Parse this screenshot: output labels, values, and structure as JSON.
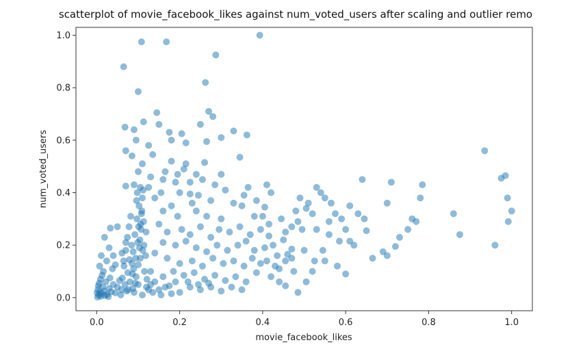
{
  "chart_data": {
    "type": "scatter",
    "title": "scatterplot of movie_facebook_likes against num_voted_users after scaling and outlier remo",
    "xlabel": "movie_facebook_likes",
    "ylabel": "num_voted_users",
    "xlim": [
      -0.05,
      1.05
    ],
    "ylim": [
      -0.05,
      1.03
    ],
    "xticks": [
      "0.0",
      "0.2",
      "0.4",
      "0.6",
      "0.8",
      "1.0"
    ],
    "yticks": [
      "0.0",
      "0.2",
      "0.4",
      "0.6",
      "0.8",
      "1.0"
    ],
    "grid": false,
    "legend": "none",
    "marker_color": "#1f77b4",
    "marker_alpha": 0.5,
    "points": [
      [
        0.002,
        0.002
      ],
      [
        0.005,
        0.01
      ],
      [
        0.008,
        0.02
      ],
      [
        0.01,
        0.005
      ],
      [
        0.003,
        0.03
      ],
      [
        0.012,
        0.015
      ],
      [
        0.015,
        0.04
      ],
      [
        0.02,
        0.008
      ],
      [
        0.006,
        0.055
      ],
      [
        0.018,
        0.025
      ],
      [
        0.025,
        0.012
      ],
      [
        0.03,
        0.035
      ],
      [
        0.001,
        0.018
      ],
      [
        0.009,
        0.07
      ],
      [
        0.022,
        0.06
      ],
      [
        0.028,
        0.004
      ],
      [
        0.035,
        0.022
      ],
      [
        0.04,
        0.05
      ],
      [
        0.013,
        0.085
      ],
      [
        0.004,
        0.045
      ],
      [
        0.016,
        0.1
      ],
      [
        0.032,
        0.075
      ],
      [
        0.045,
        0.018
      ],
      [
        0.05,
        0.04
      ],
      [
        0.007,
        0.12
      ],
      [
        0.024,
        0.14
      ],
      [
        0.038,
        0.11
      ],
      [
        0.055,
        0.065
      ],
      [
        0.06,
        0.03
      ],
      [
        0.011,
        0.16
      ],
      [
        0.019,
        0.23
      ],
      [
        0.033,
        0.265
      ],
      [
        0.04,
        0.16
      ],
      [
        0.05,
        0.27
      ],
      [
        0.061,
        0.17
      ],
      [
        0.065,
        0.14
      ],
      [
        0.07,
        0.21
      ],
      [
        0.075,
        0.095
      ],
      [
        0.03,
        0.19
      ],
      [
        0.045,
        0.125
      ],
      [
        0.08,
        0.06
      ],
      [
        0.085,
        0.13
      ],
      [
        0.09,
        0.02
      ],
      [
        0.095,
        0.08
      ],
      [
        0.1,
        0.05
      ],
      [
        0.105,
        0.15
      ],
      [
        0.11,
        0.01
      ],
      [
        0.115,
        0.1
      ],
      [
        0.068,
        0.05
      ],
      [
        0.072,
        0.025
      ],
      [
        0.088,
        0.175
      ],
      [
        0.092,
        0.24
      ],
      [
        0.097,
        0.3
      ],
      [
        0.102,
        0.35
      ],
      [
        0.104,
        0.22
      ],
      [
        0.106,
        0.28
      ],
      [
        0.108,
        0.32
      ],
      [
        0.11,
        0.38
      ],
      [
        0.112,
        0.41
      ],
      [
        0.107,
        0.26
      ],
      [
        0.103,
        0.19
      ],
      [
        0.099,
        0.21
      ],
      [
        0.094,
        0.15
      ],
      [
        0.089,
        0.11
      ],
      [
        0.086,
        0.09
      ],
      [
        0.114,
        0.2
      ],
      [
        0.118,
        0.16
      ],
      [
        0.121,
        0.07
      ],
      [
        0.125,
        0.03
      ],
      [
        0.098,
        0.4
      ],
      [
        0.109,
        0.33
      ],
      [
        0.113,
        0.29
      ],
      [
        0.101,
        0.27
      ],
      [
        0.096,
        0.37
      ],
      [
        0.111,
        0.18
      ],
      [
        0.105,
        0.42
      ],
      [
        0.1,
        0.125
      ],
      [
        0.093,
        0.055
      ],
      [
        0.087,
        0.035
      ],
      [
        0.119,
        0.25
      ],
      [
        0.065,
        0.88
      ],
      [
        0.108,
        0.975
      ],
      [
        0.168,
        0.975
      ],
      [
        0.287,
        0.925
      ],
      [
        0.393,
        1.0
      ],
      [
        0.262,
        0.82
      ],
      [
        0.1,
        0.785
      ],
      [
        0.145,
        0.705
      ],
      [
        0.27,
        0.71
      ],
      [
        0.28,
        0.69
      ],
      [
        0.068,
        0.65
      ],
      [
        0.09,
        0.64
      ],
      [
        0.113,
        0.67
      ],
      [
        0.15,
        0.66
      ],
      [
        0.175,
        0.63
      ],
      [
        0.205,
        0.625
      ],
      [
        0.25,
        0.66
      ],
      [
        0.33,
        0.635
      ],
      [
        0.362,
        0.62
      ],
      [
        0.095,
        0.6
      ],
      [
        0.125,
        0.58
      ],
      [
        0.18,
        0.6
      ],
      [
        0.215,
        0.59
      ],
      [
        0.265,
        0.595
      ],
      [
        0.3,
        0.61
      ],
      [
        0.07,
        0.56
      ],
      [
        0.085,
        0.54
      ],
      [
        0.11,
        0.51
      ],
      [
        0.135,
        0.545
      ],
      [
        0.18,
        0.52
      ],
      [
        0.215,
        0.51
      ],
      [
        0.26,
        0.515
      ],
      [
        0.345,
        0.535
      ],
      [
        0.1,
        0.48
      ],
      [
        0.13,
        0.46
      ],
      [
        0.165,
        0.48
      ],
      [
        0.195,
        0.47
      ],
      [
        0.21,
        0.49
      ],
      [
        0.24,
        0.47
      ],
      [
        0.255,
        0.45
      ],
      [
        0.285,
        0.43
      ],
      [
        0.3,
        0.47
      ],
      [
        0.16,
        0.45
      ],
      [
        0.19,
        0.44
      ],
      [
        0.225,
        0.44
      ],
      [
        0.07,
        0.425
      ],
      [
        0.09,
        0.43
      ],
      [
        0.125,
        0.42
      ],
      [
        0.155,
        0.4
      ],
      [
        0.2,
        0.4
      ],
      [
        0.225,
        0.395
      ],
      [
        0.245,
        0.39
      ],
      [
        0.31,
        0.41
      ],
      [
        0.355,
        0.39
      ],
      [
        0.41,
        0.43
      ],
      [
        0.42,
        0.4
      ],
      [
        0.365,
        0.42
      ],
      [
        0.275,
        0.37
      ],
      [
        0.23,
        0.36
      ],
      [
        0.18,
        0.35
      ],
      [
        0.14,
        0.38
      ],
      [
        0.16,
        0.33
      ],
      [
        0.195,
        0.31
      ],
      [
        0.24,
        0.33
      ],
      [
        0.265,
        0.31
      ],
      [
        0.3,
        0.3
      ],
      [
        0.33,
        0.36
      ],
      [
        0.35,
        0.35
      ],
      [
        0.38,
        0.31
      ],
      [
        0.4,
        0.31
      ],
      [
        0.15,
        0.28
      ],
      [
        0.17,
        0.25
      ],
      [
        0.205,
        0.26
      ],
      [
        0.225,
        0.24
      ],
      [
        0.25,
        0.27
      ],
      [
        0.275,
        0.23
      ],
      [
        0.295,
        0.26
      ],
      [
        0.32,
        0.25
      ],
      [
        0.345,
        0.27
      ],
      [
        0.37,
        0.24
      ],
      [
        0.395,
        0.26
      ],
      [
        0.415,
        0.28
      ],
      [
        0.16,
        0.21
      ],
      [
        0.19,
        0.2
      ],
      [
        0.215,
        0.215
      ],
      [
        0.24,
        0.19
      ],
      [
        0.265,
        0.175
      ],
      [
        0.29,
        0.2
      ],
      [
        0.315,
        0.18
      ],
      [
        0.34,
        0.2
      ],
      [
        0.36,
        0.215
      ],
      [
        0.38,
        0.18
      ],
      [
        0.405,
        0.19
      ],
      [
        0.425,
        0.2
      ],
      [
        0.14,
        0.17
      ],
      [
        0.17,
        0.15
      ],
      [
        0.2,
        0.13
      ],
      [
        0.23,
        0.14
      ],
      [
        0.255,
        0.12
      ],
      [
        0.28,
        0.15
      ],
      [
        0.305,
        0.13
      ],
      [
        0.33,
        0.14
      ],
      [
        0.355,
        0.12
      ],
      [
        0.375,
        0.15
      ],
      [
        0.395,
        0.13
      ],
      [
        0.41,
        0.14
      ],
      [
        0.43,
        0.12
      ],
      [
        0.13,
        0.1
      ],
      [
        0.16,
        0.08
      ],
      [
        0.185,
        0.1
      ],
      [
        0.21,
        0.085
      ],
      [
        0.235,
        0.095
      ],
      [
        0.26,
        0.07
      ],
      [
        0.285,
        0.085
      ],
      [
        0.31,
        0.065
      ],
      [
        0.335,
        0.08
      ],
      [
        0.36,
        0.06
      ],
      [
        0.385,
        0.095
      ],
      [
        0.42,
        0.08
      ],
      [
        0.44,
        0.06
      ],
      [
        0.13,
        0.05
      ],
      [
        0.15,
        0.03
      ],
      [
        0.175,
        0.045
      ],
      [
        0.2,
        0.02
      ],
      [
        0.225,
        0.04
      ],
      [
        0.25,
        0.03
      ],
      [
        0.275,
        0.04
      ],
      [
        0.3,
        0.025
      ],
      [
        0.325,
        0.04
      ],
      [
        0.35,
        0.03
      ],
      [
        0.14,
        0.06
      ],
      [
        0.165,
        0.04
      ],
      [
        0.19,
        0.06
      ],
      [
        0.22,
        0.06
      ],
      [
        0.245,
        0.05
      ],
      [
        0.27,
        0.055
      ],
      [
        0.12,
        0.04
      ],
      [
        0.135,
        0.02
      ],
      [
        0.155,
        0.01
      ],
      [
        0.18,
        0.015
      ],
      [
        0.445,
        0.3
      ],
      [
        0.45,
        0.22
      ],
      [
        0.46,
        0.165
      ],
      [
        0.47,
        0.15
      ],
      [
        0.48,
        0.33
      ],
      [
        0.485,
        0.29
      ],
      [
        0.495,
        0.26
      ],
      [
        0.505,
        0.34
      ],
      [
        0.51,
        0.36
      ],
      [
        0.52,
        0.32
      ],
      [
        0.53,
        0.26
      ],
      [
        0.54,
        0.4
      ],
      [
        0.55,
        0.38
      ],
      [
        0.565,
        0.36
      ],
      [
        0.575,
        0.32
      ],
      [
        0.59,
        0.3
      ],
      [
        0.6,
        0.26
      ],
      [
        0.61,
        0.35
      ],
      [
        0.63,
        0.32
      ],
      [
        0.645,
        0.3
      ],
      [
        0.49,
        0.38
      ],
      [
        0.53,
        0.42
      ],
      [
        0.56,
        0.24
      ],
      [
        0.585,
        0.215
      ],
      [
        0.61,
        0.215
      ],
      [
        0.62,
        0.2
      ],
      [
        0.64,
        0.45
      ],
      [
        0.65,
        0.255
      ],
      [
        0.665,
        0.15
      ],
      [
        0.69,
        0.175
      ],
      [
        0.7,
        0.16
      ],
      [
        0.7,
        0.36
      ],
      [
        0.71,
        0.44
      ],
      [
        0.72,
        0.195
      ],
      [
        0.73,
        0.23
      ],
      [
        0.75,
        0.26
      ],
      [
        0.76,
        0.3
      ],
      [
        0.77,
        0.29
      ],
      [
        0.78,
        0.38
      ],
      [
        0.785,
        0.43
      ],
      [
        0.86,
        0.32
      ],
      [
        0.875,
        0.24
      ],
      [
        0.935,
        0.56
      ],
      [
        0.96,
        0.2
      ],
      [
        0.975,
        0.455
      ],
      [
        0.985,
        0.465
      ],
      [
        0.99,
        0.38
      ],
      [
        1.0,
        0.33
      ],
      [
        0.992,
        0.29
      ],
      [
        0.475,
        0.1
      ],
      [
        0.485,
        0.02
      ],
      [
        0.505,
        0.06
      ],
      [
        0.52,
        0.1
      ],
      [
        0.55,
        0.14
      ],
      [
        0.58,
        0.12
      ],
      [
        0.6,
        0.09
      ],
      [
        0.44,
        0.11
      ],
      [
        0.455,
        0.14
      ],
      [
        0.47,
        0.185
      ],
      [
        0.5,
        0.18
      ],
      [
        0.545,
        0.18
      ],
      [
        0.56,
        0.29
      ],
      [
        0.455,
        0.045
      ],
      [
        0.435,
        0.16
      ],
      [
        0.415,
        0.235
      ],
      [
        0.405,
        0.345
      ],
      [
        0.385,
        0.37
      ],
      [
        0.455,
        0.25
      ],
      [
        0.47,
        0.27
      ],
      [
        0.525,
        0.14
      ],
      [
        0.058,
        0.01
      ],
      [
        0.062,
        0.075
      ],
      [
        0.066,
        0.12
      ],
      [
        0.07,
        0.18
      ],
      [
        0.074,
        0.23
      ],
      [
        0.078,
        0.27
      ],
      [
        0.082,
        0.31
      ],
      [
        0.084,
        0.2
      ],
      [
        0.079,
        0.145
      ],
      [
        0.076,
        0.03
      ]
    ]
  }
}
